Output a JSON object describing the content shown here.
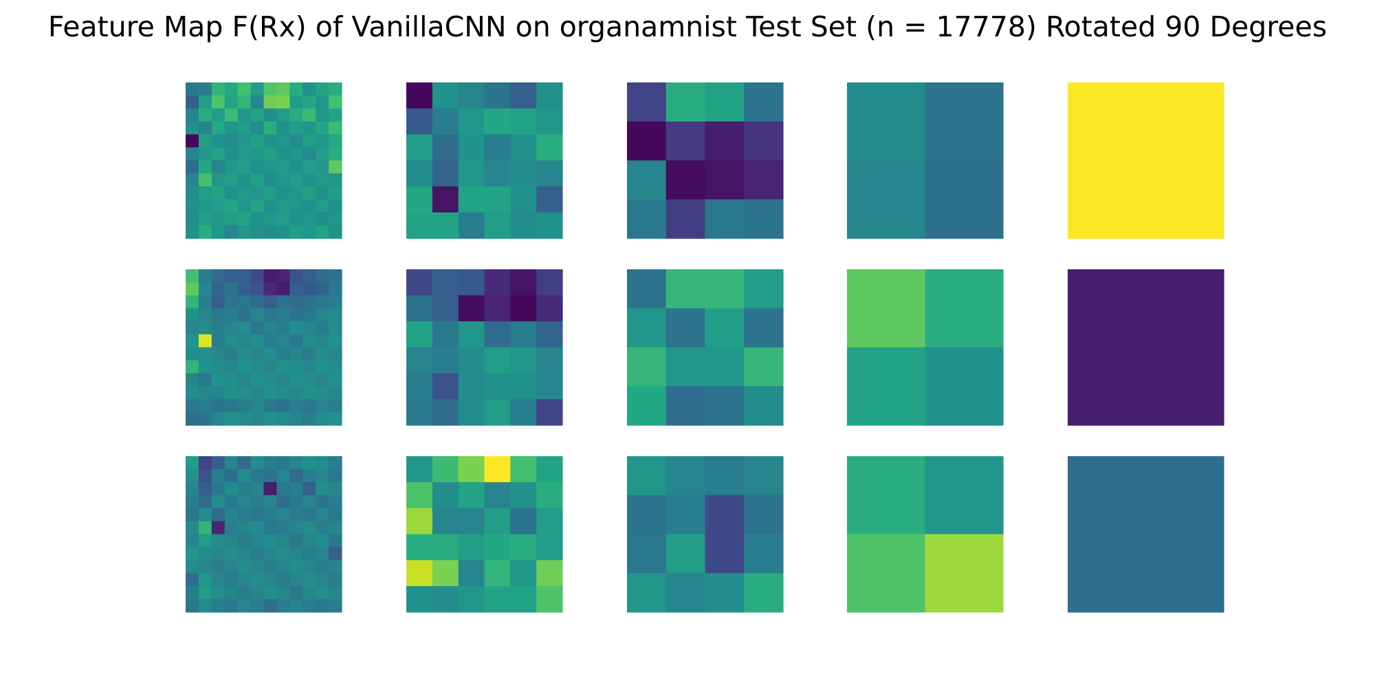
{
  "chart_data": {
    "type": "heatmap",
    "title": "Feature Map F(Rx) of VanillaCNN on organamnist Test Set (n = 17778) Rotated 90 Degrees",
    "colormap": "viridis",
    "value_range": [
      0,
      1
    ],
    "grid": false,
    "rows": [
      [
        {
          "size": 12,
          "values": [
            [
              0.4,
              0.42,
              0.65,
              0.6,
              0.7,
              0.55,
              0.72,
              0.75,
              0.62,
              0.5,
              0.58,
              0.62
            ],
            [
              0.3,
              0.55,
              0.72,
              0.58,
              0.65,
              0.45,
              0.78,
              0.8,
              0.55,
              0.6,
              0.52,
              0.7
            ],
            [
              0.45,
              0.62,
              0.55,
              0.68,
              0.52,
              0.58,
              0.48,
              0.55,
              0.62,
              0.68,
              0.52,
              0.58
            ],
            [
              0.5,
              0.45,
              0.6,
              0.52,
              0.55,
              0.48,
              0.62,
              0.5,
              0.55,
              0.52,
              0.6,
              0.68
            ],
            [
              0.02,
              0.55,
              0.5,
              0.48,
              0.52,
              0.56,
              0.5,
              0.52,
              0.48,
              0.55,
              0.52,
              0.6
            ],
            [
              0.45,
              0.52,
              0.58,
              0.5,
              0.54,
              0.52,
              0.56,
              0.5,
              0.52,
              0.48,
              0.55,
              0.62
            ],
            [
              0.35,
              0.6,
              0.45,
              0.52,
              0.55,
              0.5,
              0.52,
              0.54,
              0.5,
              0.55,
              0.52,
              0.75
            ],
            [
              0.45,
              0.7,
              0.52,
              0.55,
              0.5,
              0.56,
              0.48,
              0.52,
              0.55,
              0.5,
              0.54,
              0.52
            ],
            [
              0.48,
              0.55,
              0.58,
              0.5,
              0.54,
              0.52,
              0.55,
              0.5,
              0.52,
              0.56,
              0.5,
              0.55
            ],
            [
              0.5,
              0.52,
              0.55,
              0.6,
              0.52,
              0.58,
              0.5,
              0.54,
              0.52,
              0.5,
              0.55,
              0.5
            ],
            [
              0.48,
              0.56,
              0.52,
              0.55,
              0.58,
              0.5,
              0.52,
              0.55,
              0.5,
              0.52,
              0.48,
              0.52
            ],
            [
              0.5,
              0.62,
              0.52,
              0.45,
              0.52,
              0.5,
              0.48,
              0.5,
              0.55,
              0.52,
              0.58,
              0.5
            ]
          ]
        },
        {
          "size": 6,
          "values": [
            [
              0.02,
              0.5,
              0.45,
              0.38,
              0.3,
              0.5
            ],
            [
              0.28,
              0.42,
              0.52,
              0.6,
              0.58,
              0.52
            ],
            [
              0.55,
              0.35,
              0.5,
              0.42,
              0.5,
              0.62
            ],
            [
              0.48,
              0.32,
              0.52,
              0.45,
              0.48,
              0.45
            ],
            [
              0.6,
              0.05,
              0.58,
              0.58,
              0.5,
              0.3
            ],
            [
              0.58,
              0.58,
              0.42,
              0.55,
              0.48,
              0.5
            ]
          ]
        },
        {
          "size": 4,
          "values": [
            [
              0.2,
              0.62,
              0.58,
              0.38
            ],
            [
              0.02,
              0.17,
              0.08,
              0.15
            ],
            [
              0.45,
              0.03,
              0.05,
              0.1
            ],
            [
              0.4,
              0.18,
              0.4,
              0.38
            ]
          ]
        },
        {
          "size": 2,
          "values": [
            [
              0.48,
              0.38
            ],
            [
              0.45,
              0.37
            ]
          ]
        },
        {
          "size": 1,
          "values": [
            [
              1.0
            ]
          ]
        }
      ],
      [
        {
          "size": 12,
          "values": [
            [
              0.7,
              0.42,
              0.35,
              0.3,
              0.3,
              0.22,
              0.08,
              0.1,
              0.25,
              0.3,
              0.35,
              0.38
            ],
            [
              0.75,
              0.45,
              0.32,
              0.38,
              0.3,
              0.25,
              0.12,
              0.08,
              0.3,
              0.28,
              0.32,
              0.4
            ],
            [
              0.65,
              0.42,
              0.3,
              0.38,
              0.4,
              0.35,
              0.3,
              0.38,
              0.35,
              0.38,
              0.4,
              0.42
            ],
            [
              0.5,
              0.45,
              0.4,
              0.42,
              0.38,
              0.45,
              0.4,
              0.42,
              0.38,
              0.4,
              0.45,
              0.48
            ],
            [
              0.45,
              0.48,
              0.42,
              0.45,
              0.48,
              0.4,
              0.45,
              0.42,
              0.48,
              0.45,
              0.42,
              0.48
            ],
            [
              0.52,
              0.95,
              0.42,
              0.48,
              0.45,
              0.48,
              0.42,
              0.45,
              0.4,
              0.48,
              0.45,
              0.5
            ],
            [
              0.48,
              0.5,
              0.45,
              0.42,
              0.48,
              0.45,
              0.48,
              0.42,
              0.45,
              0.42,
              0.48,
              0.45
            ],
            [
              0.65,
              0.5,
              0.48,
              0.45,
              0.5,
              0.48,
              0.45,
              0.5,
              0.48,
              0.45,
              0.5,
              0.48
            ],
            [
              0.45,
              0.4,
              0.5,
              0.48,
              0.45,
              0.5,
              0.48,
              0.45,
              0.5,
              0.48,
              0.45,
              0.5
            ],
            [
              0.48,
              0.45,
              0.45,
              0.5,
              0.48,
              0.45,
              0.5,
              0.48,
              0.45,
              0.5,
              0.48,
              0.45
            ],
            [
              0.4,
              0.42,
              0.38,
              0.4,
              0.42,
              0.45,
              0.4,
              0.38,
              0.42,
              0.4,
              0.45,
              0.42
            ],
            [
              0.35,
              0.38,
              0.45,
              0.5,
              0.48,
              0.45,
              0.5,
              0.48,
              0.45,
              0.42,
              0.48,
              0.5
            ]
          ]
        },
        {
          "size": 6,
          "values": [
            [
              0.22,
              0.3,
              0.28,
              0.12,
              0.05,
              0.18
            ],
            [
              0.38,
              0.3,
              0.03,
              0.1,
              0.02,
              0.12
            ],
            [
              0.58,
              0.4,
              0.52,
              0.35,
              0.42,
              0.32
            ],
            [
              0.45,
              0.42,
              0.48,
              0.55,
              0.52,
              0.45
            ],
            [
              0.42,
              0.25,
              0.48,
              0.5,
              0.5,
              0.45
            ],
            [
              0.4,
              0.35,
              0.48,
              0.55,
              0.42,
              0.2
            ]
          ]
        },
        {
          "size": 4,
          "values": [
            [
              0.38,
              0.66,
              0.66,
              0.55
            ],
            [
              0.52,
              0.38,
              0.55,
              0.38
            ],
            [
              0.66,
              0.52,
              0.52,
              0.66
            ],
            [
              0.6,
              0.35,
              0.38,
              0.48
            ]
          ]
        },
        {
          "size": 2,
          "values": [
            [
              0.75,
              0.62
            ],
            [
              0.58,
              0.5
            ]
          ]
        },
        {
          "size": 1,
          "values": [
            [
              0.08
            ]
          ]
        }
      ],
      [
        {
          "size": 12,
          "values": [
            [
              0.55,
              0.2,
              0.3,
              0.45,
              0.35,
              0.48,
              0.42,
              0.4,
              0.45,
              0.5,
              0.48,
              0.42
            ],
            [
              0.5,
              0.25,
              0.42,
              0.35,
              0.48,
              0.4,
              0.38,
              0.45,
              0.35,
              0.42,
              0.45,
              0.4
            ],
            [
              0.45,
              0.3,
              0.4,
              0.48,
              0.42,
              0.45,
              0.08,
              0.4,
              0.42,
              0.3,
              0.48,
              0.45
            ],
            [
              0.42,
              0.35,
              0.48,
              0.4,
              0.45,
              0.42,
              0.45,
              0.35,
              0.4,
              0.45,
              0.38,
              0.42
            ],
            [
              0.4,
              0.48,
              0.35,
              0.45,
              0.42,
              0.4,
              0.42,
              0.45,
              0.42,
              0.4,
              0.45,
              0.4
            ],
            [
              0.48,
              0.65,
              0.1,
              0.42,
              0.45,
              0.48,
              0.4,
              0.42,
              0.45,
              0.48,
              0.42,
              0.45
            ],
            [
              0.45,
              0.55,
              0.48,
              0.45,
              0.42,
              0.45,
              0.48,
              0.45,
              0.4,
              0.45,
              0.48,
              0.4
            ],
            [
              0.52,
              0.48,
              0.45,
              0.48,
              0.45,
              0.42,
              0.45,
              0.48,
              0.45,
              0.42,
              0.45,
              0.3
            ],
            [
              0.48,
              0.45,
              0.42,
              0.45,
              0.48,
              0.45,
              0.42,
              0.45,
              0.48,
              0.45,
              0.42,
              0.45
            ],
            [
              0.35,
              0.52,
              0.45,
              0.42,
              0.45,
              0.48,
              0.45,
              0.42,
              0.45,
              0.48,
              0.45,
              0.42
            ],
            [
              0.42,
              0.55,
              0.48,
              0.45,
              0.42,
              0.45,
              0.48,
              0.45,
              0.4,
              0.45,
              0.48,
              0.45
            ],
            [
              0.4,
              0.48,
              0.42,
              0.4,
              0.45,
              0.42,
              0.35,
              0.42,
              0.45,
              0.42,
              0.4,
              0.42
            ]
          ]
        },
        {
          "size": 6,
          "values": [
            [
              0.52,
              0.68,
              0.8,
              1.0,
              0.7,
              0.58
            ],
            [
              0.72,
              0.48,
              0.58,
              0.45,
              0.5,
              0.62
            ],
            [
              0.85,
              0.45,
              0.45,
              0.55,
              0.38,
              0.55
            ],
            [
              0.62,
              0.62,
              0.55,
              0.6,
              0.62,
              0.55
            ],
            [
              0.92,
              0.8,
              0.45,
              0.65,
              0.52,
              0.78
            ],
            [
              0.5,
              0.48,
              0.52,
              0.58,
              0.58,
              0.72
            ]
          ]
        },
        {
          "size": 4,
          "values": [
            [
              0.52,
              0.45,
              0.42,
              0.45
            ],
            [
              0.38,
              0.42,
              0.22,
              0.38
            ],
            [
              0.4,
              0.55,
              0.22,
              0.42
            ],
            [
              0.52,
              0.45,
              0.48,
              0.62
            ]
          ]
        },
        {
          "size": 2,
          "values": [
            [
              0.62,
              0.52
            ],
            [
              0.72,
              0.85
            ]
          ]
        },
        {
          "size": 1,
          "values": [
            [
              0.36
            ]
          ]
        }
      ]
    ]
  }
}
